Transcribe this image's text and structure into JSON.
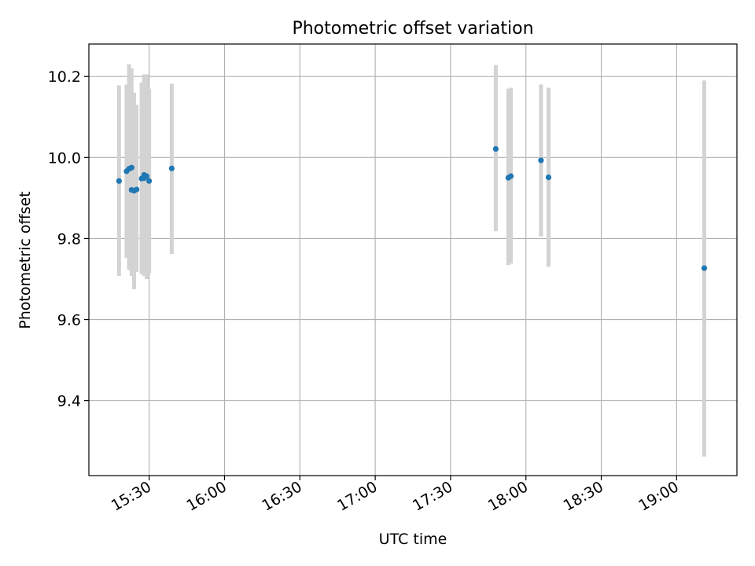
{
  "chart_data": {
    "type": "scatter",
    "title": "Photometric offset variation",
    "xlabel": "UTC time",
    "ylabel": "Photometric offset",
    "grid": true,
    "x_tick_labels": [
      "15:30",
      "16:00",
      "16:30",
      "17:00",
      "17:30",
      "18:00",
      "18:30",
      "19:00"
    ],
    "x_tick_minutes": [
      930,
      960,
      990,
      1020,
      1050,
      1080,
      1110,
      1140
    ],
    "y_ticks": [
      9.4,
      9.6,
      9.8,
      10.0,
      10.2
    ],
    "y_tick_labels": [
      "9.4",
      "9.6",
      "9.8",
      "10.0",
      "10.2"
    ],
    "xlim_minutes": [
      906,
      1164
    ],
    "ylim": [
      9.215,
      10.28
    ],
    "colors": {
      "point": "#1f77b4",
      "errorbar": "#d3d3d3",
      "grid": "#b0b0b0"
    },
    "points": [
      {
        "t": "15:18",
        "y": 9.942,
        "lo": 9.708,
        "hi": 10.178
      },
      {
        "t": "15:21",
        "y": 9.966,
        "lo": 9.752,
        "hi": 10.18
      },
      {
        "t": "15:22",
        "y": 9.972,
        "lo": 9.722,
        "hi": 10.23
      },
      {
        "t": "15:23",
        "y": 9.975,
        "lo": 9.742,
        "hi": 10.22
      },
      {
        "t": "15:23",
        "y": 9.92,
        "lo": 9.708,
        "hi": 10.13
      },
      {
        "t": "15:24",
        "y": 9.918,
        "lo": 9.675,
        "hi": 10.16
      },
      {
        "t": "15:25",
        "y": 9.921,
        "lo": 9.718,
        "hi": 10.13
      },
      {
        "t": "15:27",
        "y": 9.948,
        "lo": 9.712,
        "hi": 10.185
      },
      {
        "t": "15:28",
        "y": 9.957,
        "lo": 9.708,
        "hi": 10.205
      },
      {
        "t": "15:28",
        "y": 9.949,
        "lo": 9.715,
        "hi": 10.19
      },
      {
        "t": "15:29",
        "y": 9.954,
        "lo": 9.7,
        "hi": 10.205
      },
      {
        "t": "15:30",
        "y": 9.942,
        "lo": 9.715,
        "hi": 10.17
      },
      {
        "t": "15:39",
        "y": 9.973,
        "lo": 9.762,
        "hi": 10.182
      },
      {
        "t": "17:48",
        "y": 10.021,
        "lo": 9.818,
        "hi": 10.228
      },
      {
        "t": "17:53",
        "y": 9.95,
        "lo": 9.735,
        "hi": 10.17
      },
      {
        "t": "17:54",
        "y": 9.954,
        "lo": 9.738,
        "hi": 10.172
      },
      {
        "t": "18:06",
        "y": 9.993,
        "lo": 9.805,
        "hi": 10.18
      },
      {
        "t": "18:09",
        "y": 9.951,
        "lo": 9.73,
        "hi": 10.172
      },
      {
        "t": "19:11",
        "y": 9.727,
        "lo": 9.262,
        "hi": 10.19
      }
    ]
  }
}
